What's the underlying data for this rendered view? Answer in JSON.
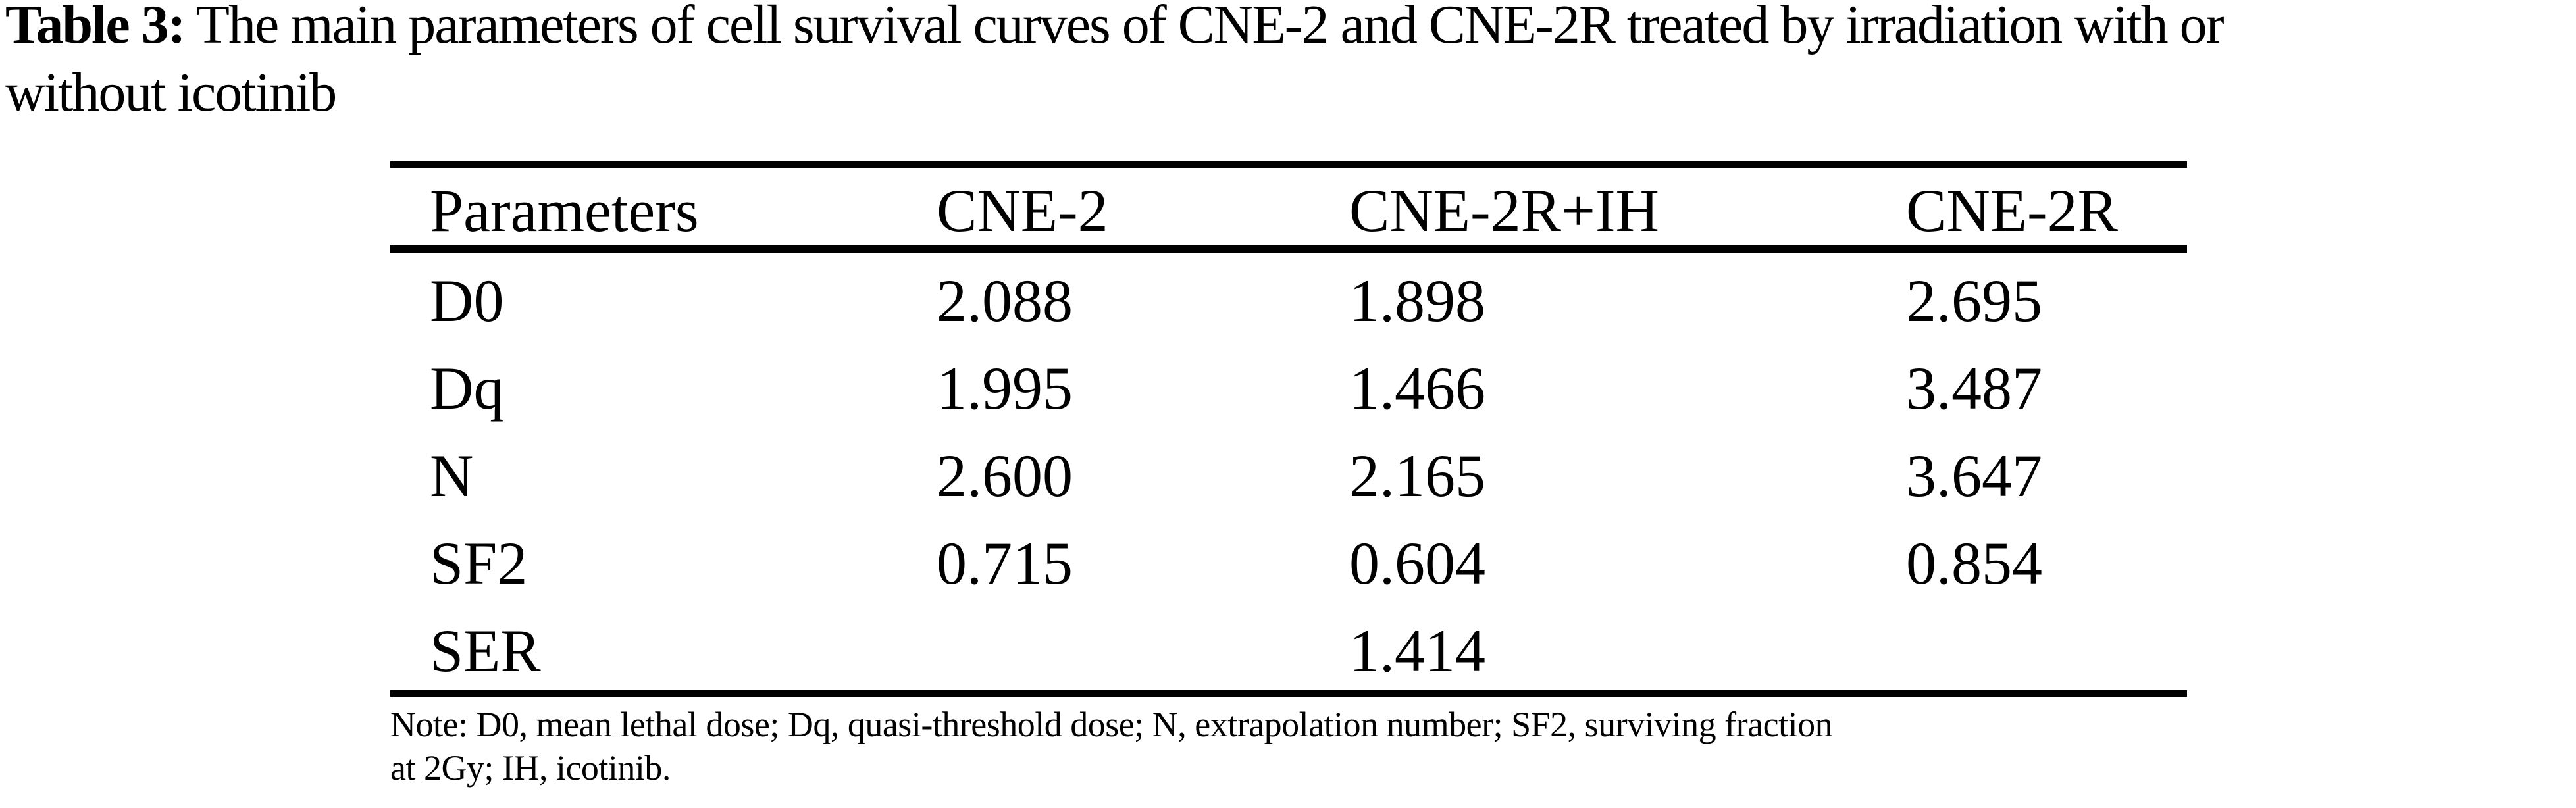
{
  "title": {
    "label": "Table 3:",
    "line1": "The main parameters of cell survival curves of CNE-2 and CNE-2R treated by irradiation with or",
    "line2": "without icotinib"
  },
  "table": {
    "columns": [
      "Parameters",
      "CNE-2",
      "CNE-2R+IH",
      "CNE-2R"
    ],
    "rows": [
      [
        "D0",
        "2.088",
        "1.898",
        "2.695"
      ],
      [
        "Dq",
        "1.995",
        "1.466",
        "3.487"
      ],
      [
        "N",
        "2.600",
        "2.165",
        "3.647"
      ],
      [
        "SF2",
        "0.715",
        "0.604",
        "0.854"
      ],
      [
        "SER",
        "",
        "1.414",
        ""
      ]
    ]
  },
  "note": {
    "line1": "Note: D0, mean lethal dose; Dq, quasi-threshold dose; N, extrapolation number; SF2, surviving fraction",
    "line2": "at 2Gy; IH, icotinib."
  }
}
